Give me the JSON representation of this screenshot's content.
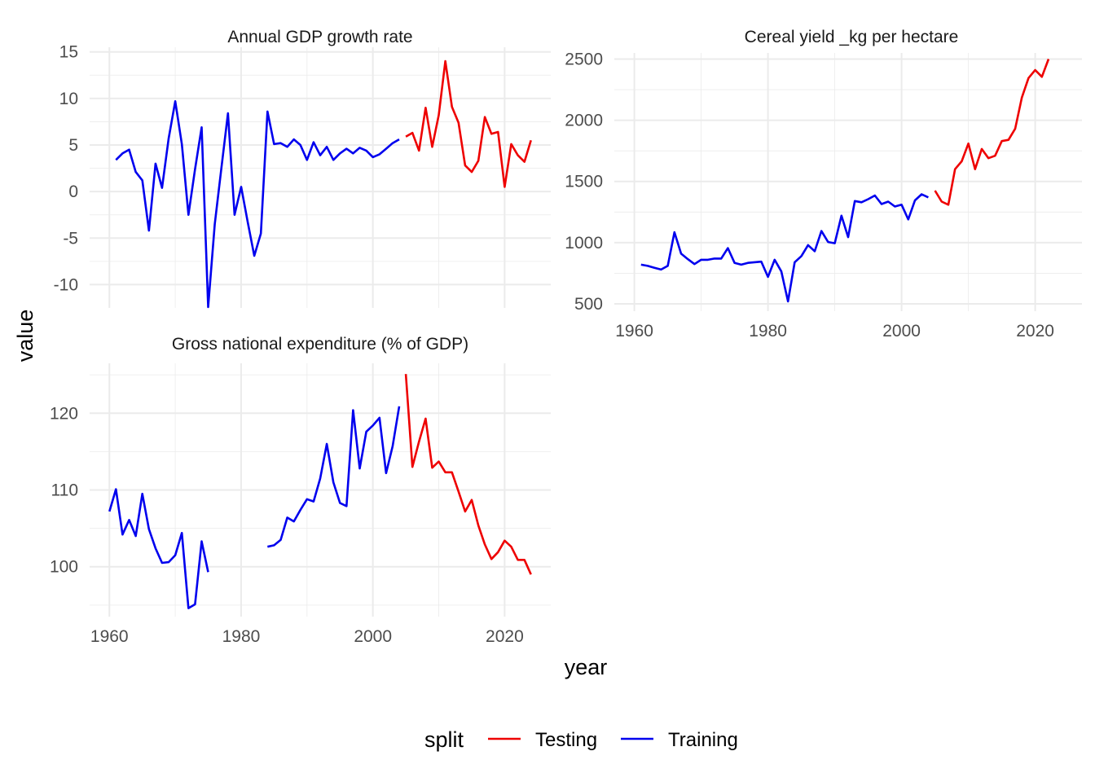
{
  "figure": {
    "ylabel": "value",
    "xlabel": "year",
    "legend_title": "split",
    "legend_placement": "bottom",
    "colors": {
      "Testing": "#ee0000",
      "Training": "#0000ee",
      "grid": "#ebebeb",
      "text": "#4d4d4d"
    }
  },
  "chart_data": [
    {
      "type": "line",
      "title": "Annual GDP growth rate",
      "xlim": [
        1957,
        2027
      ],
      "ylim": [
        -12.5,
        15.5
      ],
      "xticks": [
        1960,
        1980,
        2000,
        2020
      ],
      "show_x_ticks": false,
      "yticks": [
        -10,
        -5,
        0,
        5,
        10,
        15
      ],
      "yminor": [
        -7.5,
        -2.5,
        2.5,
        7.5,
        12.5
      ],
      "grid": true,
      "series": [
        {
          "name": "Training",
          "x": [
            1961,
            1962,
            1963,
            1964,
            1965,
            1966,
            1967,
            1968,
            1969,
            1970,
            1971,
            1972,
            1973,
            1974,
            1975,
            1976,
            1977,
            1978,
            1979,
            1980,
            1981,
            1982,
            1983,
            1984,
            1985,
            1986,
            1987,
            1988,
            1989,
            1990,
            1991,
            1992,
            1993,
            1994,
            1995,
            1996,
            1997,
            1998,
            1999,
            2000,
            2001,
            2002,
            2003,
            2004
          ],
          "y": [
            3.4,
            4.1,
            4.5,
            2.1,
            1.2,
            -4.2,
            3.0,
            0.4,
            5.7,
            9.7,
            5.1,
            -2.5,
            2.4,
            6.9,
            -12.4,
            -3.5,
            2.5,
            8.4,
            -2.5,
            0.5,
            -3.3,
            -6.9,
            -4.5,
            8.6,
            5.1,
            5.2,
            4.8,
            5.6,
            5.0,
            3.4,
            5.3,
            3.9,
            4.8,
            3.4,
            4.1,
            4.6,
            4.1,
            4.7,
            4.4,
            3.7,
            4.0,
            4.6,
            5.2,
            5.6
          ]
        },
        {
          "name": "Testing",
          "x": [
            2005,
            2006,
            2007,
            2008,
            2009,
            2010,
            2011,
            2012,
            2013,
            2014,
            2015,
            2016,
            2017,
            2018,
            2019,
            2020,
            2021,
            2022,
            2023,
            2024
          ],
          "y": [
            5.9,
            6.3,
            4.4,
            9.0,
            4.8,
            8.2,
            14.0,
            9.1,
            7.4,
            2.8,
            2.1,
            3.3,
            8.0,
            6.2,
            6.4,
            0.5,
            5.1,
            3.9,
            3.2,
            5.5
          ]
        }
      ]
    },
    {
      "type": "line",
      "title": "Cereal yield _kg per hectare",
      "xlim": [
        1957,
        2027
      ],
      "ylim": [
        440,
        2550
      ],
      "xticks": [
        1960,
        1980,
        2000,
        2020
      ],
      "show_x_ticks": true,
      "yticks": [
        500,
        1000,
        1500,
        2000,
        2500
      ],
      "yminor": [
        750,
        1250,
        1750,
        2250
      ],
      "grid": true,
      "series": [
        {
          "name": "Training",
          "x": [
            1961,
            1962,
            1963,
            1964,
            1965,
            1966,
            1967,
            1968,
            1969,
            1970,
            1971,
            1972,
            1973,
            1974,
            1975,
            1976,
            1977,
            1978,
            1979,
            1980,
            1981,
            1982,
            1983,
            1984,
            1985,
            1986,
            1987,
            1988,
            1989,
            1990,
            1991,
            1992,
            1993,
            1994,
            1995,
            1996,
            1997,
            1998,
            1999,
            2000,
            2001,
            2002,
            2003,
            2004
          ],
          "y": [
            820,
            810,
            795,
            780,
            810,
            1085,
            910,
            865,
            825,
            860,
            860,
            870,
            870,
            955,
            835,
            820,
            835,
            840,
            845,
            720,
            860,
            765,
            520,
            840,
            890,
            980,
            930,
            1095,
            1005,
            995,
            1220,
            1045,
            1340,
            1330,
            1355,
            1385,
            1315,
            1335,
            1295,
            1310,
            1190,
            1345,
            1395,
            1370
          ]
        },
        {
          "name": "Testing",
          "x": [
            2005,
            2006,
            2007,
            2008,
            2009,
            2010,
            2011,
            2012,
            2013,
            2014,
            2015,
            2016,
            2017,
            2018,
            2019,
            2020,
            2021,
            2022
          ],
          "y": [
            1425,
            1335,
            1310,
            1600,
            1665,
            1810,
            1600,
            1765,
            1690,
            1710,
            1830,
            1840,
            1930,
            2185,
            2345,
            2410,
            2355,
            2500
          ]
        }
      ]
    },
    {
      "type": "line",
      "title": "Gross national expenditure (% of GDP)",
      "xlim": [
        1957,
        2027
      ],
      "ylim": [
        93.5,
        126.5
      ],
      "xticks": [
        1960,
        1980,
        2000,
        2020
      ],
      "show_x_ticks": true,
      "yticks": [
        100,
        110,
        120
      ],
      "yminor": [
        95,
        105,
        115,
        125
      ],
      "grid": true,
      "series": [
        {
          "name": "Training",
          "x": [
            1960,
            1961,
            1962,
            1963,
            1964,
            1965,
            1966,
            1967,
            1968,
            1969,
            1970,
            1971,
            1972,
            1973,
            1974,
            1975
          ],
          "y": [
            107.2,
            110.1,
            104.2,
            106.1,
            104.0,
            109.5,
            104.9,
            102.4,
            100.5,
            100.6,
            101.5,
            104.4,
            94.6,
            95.1,
            103.3,
            99.3
          ]
        },
        {
          "name": "Training",
          "x": [
            1984,
            1985,
            1986,
            1987,
            1988,
            1989,
            1990,
            1991,
            1992,
            1993,
            1994,
            1995,
            1996,
            1997,
            1998,
            1999,
            2000,
            2001,
            2002,
            2003,
            2004
          ],
          "y": [
            102.6,
            102.8,
            103.5,
            106.4,
            105.9,
            107.4,
            108.8,
            108.5,
            111.5,
            116.0,
            111.0,
            108.3,
            107.9,
            120.4,
            112.8,
            117.6,
            118.4,
            119.4,
            112.2,
            115.7,
            120.9
          ]
        },
        {
          "name": "Testing",
          "x": [
            2005,
            2006,
            2007,
            2008,
            2009,
            2010,
            2011,
            2012,
            2013,
            2014,
            2015,
            2016,
            2017,
            2018,
            2019,
            2020,
            2021,
            2022,
            2023,
            2024
          ],
          "y": [
            125.1,
            113.0,
            116.3,
            119.3,
            112.9,
            113.7,
            112.3,
            112.3,
            109.8,
            107.2,
            108.7,
            105.4,
            102.9,
            101.0,
            101.9,
            103.4,
            102.6,
            100.9,
            100.9,
            99.0
          ]
        }
      ]
    }
  ]
}
